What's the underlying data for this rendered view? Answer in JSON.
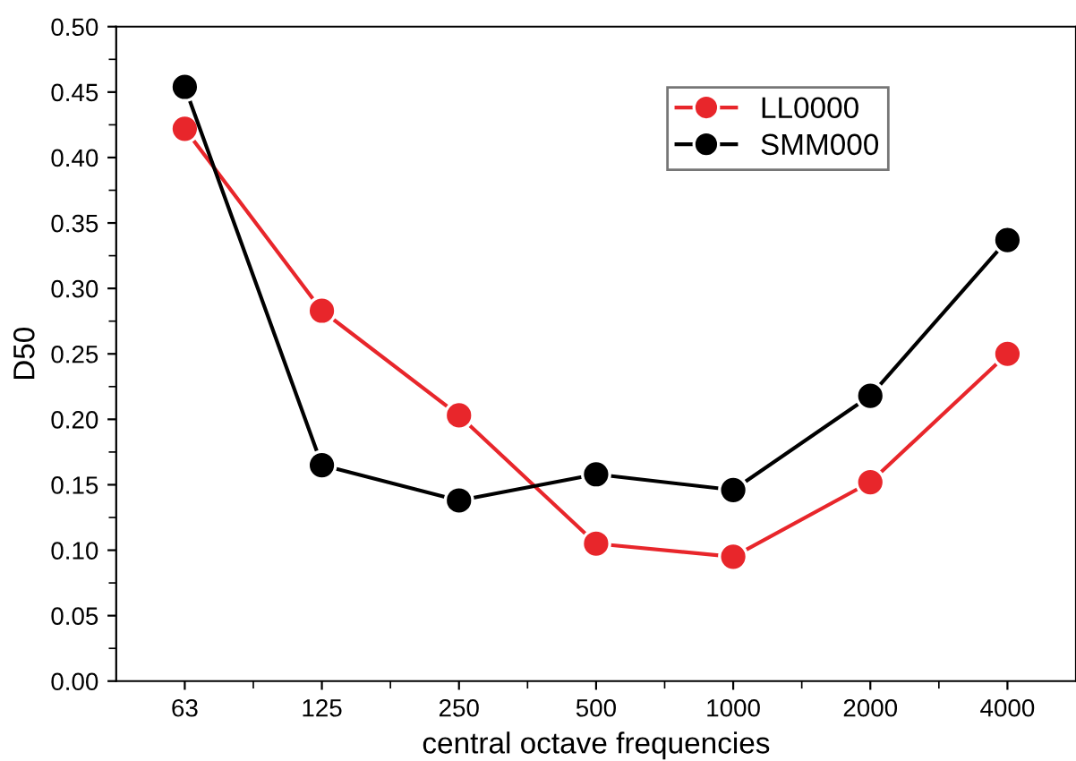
{
  "chart_data": {
    "type": "line",
    "xlabel": "central octave frequencies",
    "ylabel": "D50",
    "categories": [
      "63",
      "125",
      "250",
      "500",
      "1000",
      "2000",
      "4000"
    ],
    "series": [
      {
        "name": "LL0000",
        "color": "#e8262b",
        "values": [
          0.422,
          0.283,
          0.203,
          0.105,
          0.095,
          0.152,
          0.25
        ]
      },
      {
        "name": "SMM000",
        "color": "#000000",
        "values": [
          0.454,
          0.165,
          0.138,
          0.158,
          0.146,
          0.218,
          0.337
        ]
      }
    ],
    "ylim": [
      0,
      0.5
    ],
    "yticks": [
      {
        "value": 0,
        "label": "0.00"
      },
      {
        "value": 0.05,
        "label": "0.05"
      },
      {
        "value": 0.1,
        "label": "0.10"
      },
      {
        "value": 0.15,
        "label": "0.15"
      },
      {
        "value": 0.2,
        "label": "0.20"
      },
      {
        "value": 0.25,
        "label": "0.25"
      },
      {
        "value": 0.3,
        "label": "0.30"
      },
      {
        "value": 0.35,
        "label": "0.35"
      },
      {
        "value": 0.4,
        "label": "0.40"
      },
      {
        "value": 0.45,
        "label": "0.45"
      },
      {
        "value": 0.5,
        "label": "0.50"
      }
    ],
    "grid": false,
    "legend": "top right",
    "marker": "circle",
    "line_style": "solid"
  }
}
